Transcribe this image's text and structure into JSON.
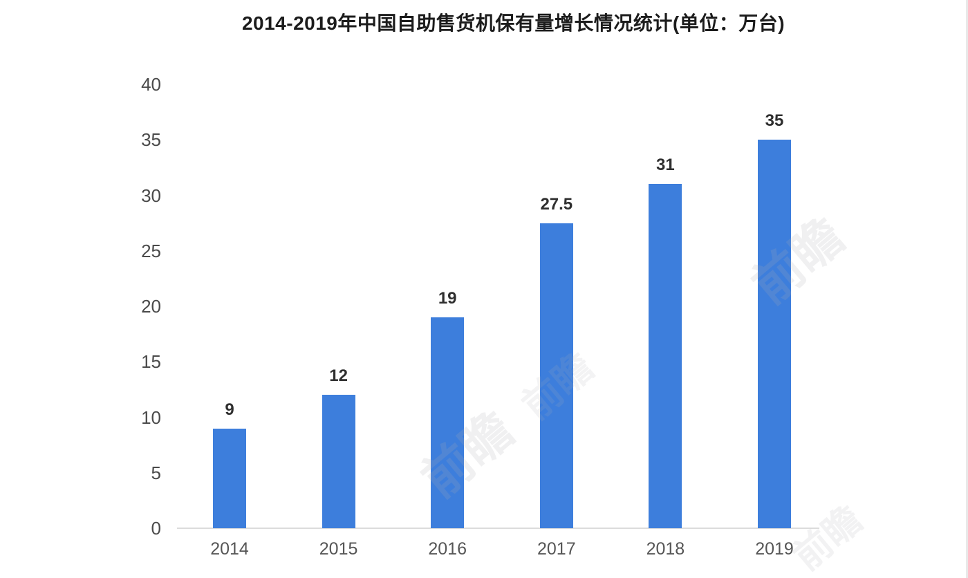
{
  "chart_data": {
    "type": "bar",
    "title": "2014-2019年中国自助售货机保有量增长情况统计(单位：万台)",
    "categories": [
      "2014",
      "2015",
      "2016",
      "2017",
      "2018",
      "2019"
    ],
    "values": [
      9,
      12,
      19,
      27.5,
      31,
      35
    ],
    "value_labels": [
      "9",
      "12",
      "19",
      "27.5",
      "31",
      "35"
    ],
    "xlabel": "",
    "ylabel": "",
    "ylim": [
      0,
      40
    ],
    "yticks": [
      0,
      5,
      10,
      15,
      20,
      25,
      30,
      35,
      40
    ],
    "grid": false,
    "legend": "none",
    "bar_color": "#3d7edc",
    "axis_line_color": "#dcdcdc",
    "title_color": "#1c1c1c",
    "value_label_color": "#2f2f2f",
    "ytick_color": "#4a4a4a",
    "xtick_color": "#565656"
  },
  "watermark": {
    "text": "前瞻"
  }
}
